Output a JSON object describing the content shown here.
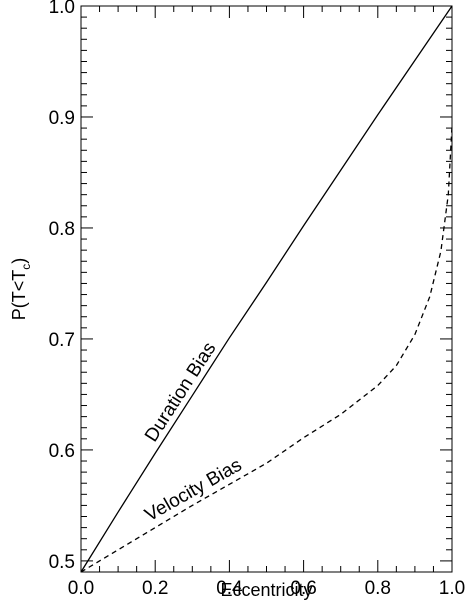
{
  "chart_data": {
    "type": "line",
    "xlabel": "Eccentricity",
    "ylabel": {
      "main": "P(T<T",
      "sub": "c",
      "close": ")"
    },
    "xlim": [
      0.0,
      1.0
    ],
    "ylim": [
      0.49,
      1.0
    ],
    "xticks": [
      "0.0",
      "0.2",
      "0.4",
      "0.6",
      "0.8",
      "1.0"
    ],
    "yticks": [
      "0.5",
      "0.6",
      "0.7",
      "0.8",
      "0.9",
      "1.0"
    ],
    "grid": false,
    "series": [
      {
        "name": "Duration Bias",
        "style": "solid",
        "color": "#000000",
        "x": [
          0.0,
          0.1,
          0.2,
          0.3,
          0.4,
          0.5,
          0.6,
          0.7,
          0.8,
          0.9,
          1.0
        ],
        "y": [
          0.49,
          0.544,
          0.597,
          0.649,
          0.701,
          0.751,
          0.802,
          0.852,
          0.902,
          0.951,
          1.0
        ]
      },
      {
        "name": "Velocity Bias",
        "style": "dashed",
        "color": "#000000",
        "x": [
          0.0,
          0.1,
          0.2,
          0.3,
          0.4,
          0.5,
          0.6,
          0.7,
          0.8,
          0.85,
          0.9,
          0.94,
          0.97,
          0.99,
          1.0
        ],
        "y": [
          0.49,
          0.51,
          0.53,
          0.55,
          0.569,
          0.588,
          0.611,
          0.632,
          0.658,
          0.676,
          0.704,
          0.738,
          0.779,
          0.83,
          0.892
        ]
      }
    ],
    "annotations": [
      {
        "text": "Duration Bias",
        "series": "Duration Bias"
      },
      {
        "text": "Velocity Bias",
        "series": "Velocity Bias"
      }
    ]
  }
}
